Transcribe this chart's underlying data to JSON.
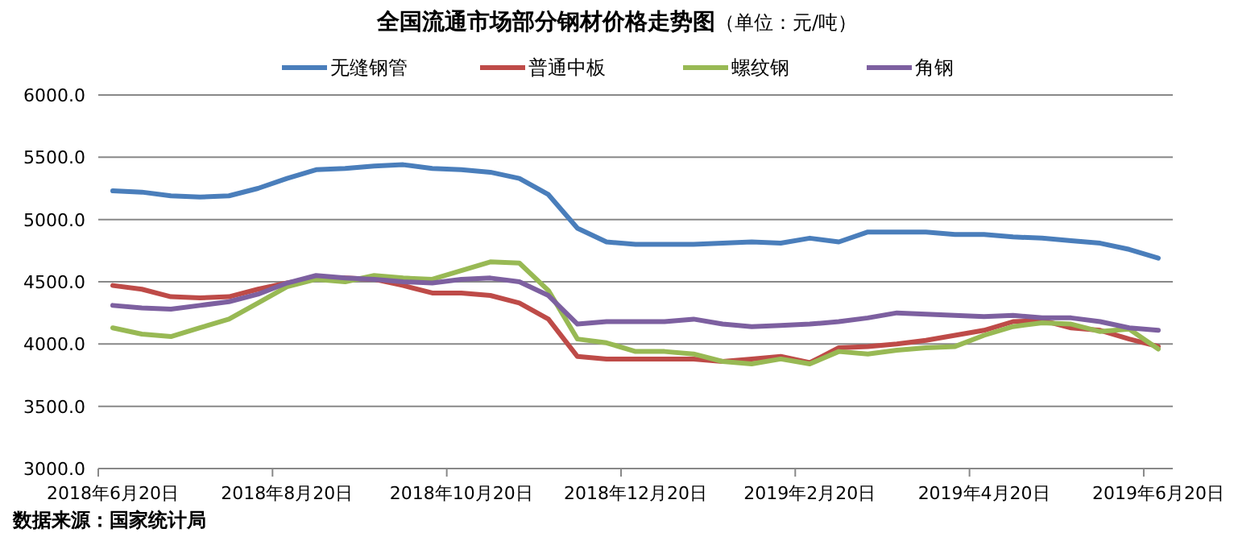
{
  "chart_data": {
    "type": "line",
    "title": "全国流通市场部分钢材价格走势图",
    "subtitle": "（单位：元/吨）",
    "categories": [
      "2018年6月20日",
      null,
      null,
      null,
      null,
      null,
      "2018年8月20日",
      null,
      null,
      null,
      null,
      null,
      "2018年10月20日",
      null,
      null,
      null,
      null,
      null,
      "2018年12月20日",
      null,
      null,
      null,
      null,
      null,
      "2019年2月20日",
      null,
      null,
      null,
      null,
      null,
      "2019年4月20日",
      null,
      null,
      null,
      null,
      null,
      "2019年6月20日"
    ],
    "series": [
      {
        "name": "无缝钢管",
        "color": "#4a7ebb",
        "values": [
          5230,
          5220,
          5190,
          5180,
          5190,
          5250,
          5330,
          5400,
          5410,
          5430,
          5440,
          5410,
          5400,
          5380,
          5330,
          5200,
          4930,
          4820,
          4800,
          4800,
          4800,
          4810,
          4820,
          4810,
          4850,
          4820,
          4900,
          4900,
          4900,
          4880,
          4880,
          4860,
          4850,
          4830,
          4810,
          4760,
          4690
        ]
      },
      {
        "name": "普通中板",
        "color": "#be4b48",
        "values": [
          4470,
          4440,
          4380,
          4370,
          4380,
          4440,
          4490,
          4530,
          4530,
          4520,
          4470,
          4410,
          4410,
          4390,
          4330,
          4200,
          3900,
          3880,
          3880,
          3880,
          3880,
          3860,
          3880,
          3900,
          3850,
          3970,
          3980,
          4000,
          4030,
          4070,
          4110,
          4180,
          4190,
          4130,
          4110,
          4040,
          3980
        ]
      },
      {
        "name": "螺纹钢",
        "color": "#98b954",
        "values": [
          4130,
          4080,
          4060,
          4130,
          4200,
          4330,
          4460,
          4520,
          4500,
          4550,
          4530,
          4520,
          4590,
          4660,
          4650,
          4430,
          4040,
          4010,
          3940,
          3940,
          3920,
          3860,
          3840,
          3880,
          3840,
          3940,
          3920,
          3950,
          3970,
          3980,
          4070,
          4140,
          4170,
          4160,
          4100,
          4120,
          3960
        ]
      },
      {
        "name": "角钢",
        "color": "#7d60a0",
        "values": [
          4310,
          4290,
          4280,
          4310,
          4340,
          4400,
          4490,
          4550,
          4530,
          4520,
          4500,
          4490,
          4520,
          4530,
          4500,
          4390,
          4160,
          4180,
          4180,
          4180,
          4200,
          4160,
          4140,
          4150,
          4160,
          4180,
          4210,
          4250,
          4240,
          4230,
          4220,
          4230,
          4210,
          4210,
          4180,
          4130,
          4110
        ]
      }
    ],
    "ylim": [
      3000,
      6000
    ],
    "yticks": [
      {
        "value": 3000,
        "label": "3000.0"
      },
      {
        "value": 3500,
        "label": "3500.0"
      },
      {
        "value": 4000,
        "label": "4000.0"
      },
      {
        "value": 4500,
        "label": "4500.0"
      },
      {
        "value": 5000,
        "label": "5000.0"
      },
      {
        "value": 5500,
        "label": "5500.0"
      },
      {
        "value": 6000,
        "label": "6000.0"
      }
    ],
    "grid": "y",
    "legend": "top",
    "line_style": "solid",
    "annotations": [
      "数据来源：国家统计局"
    ]
  }
}
